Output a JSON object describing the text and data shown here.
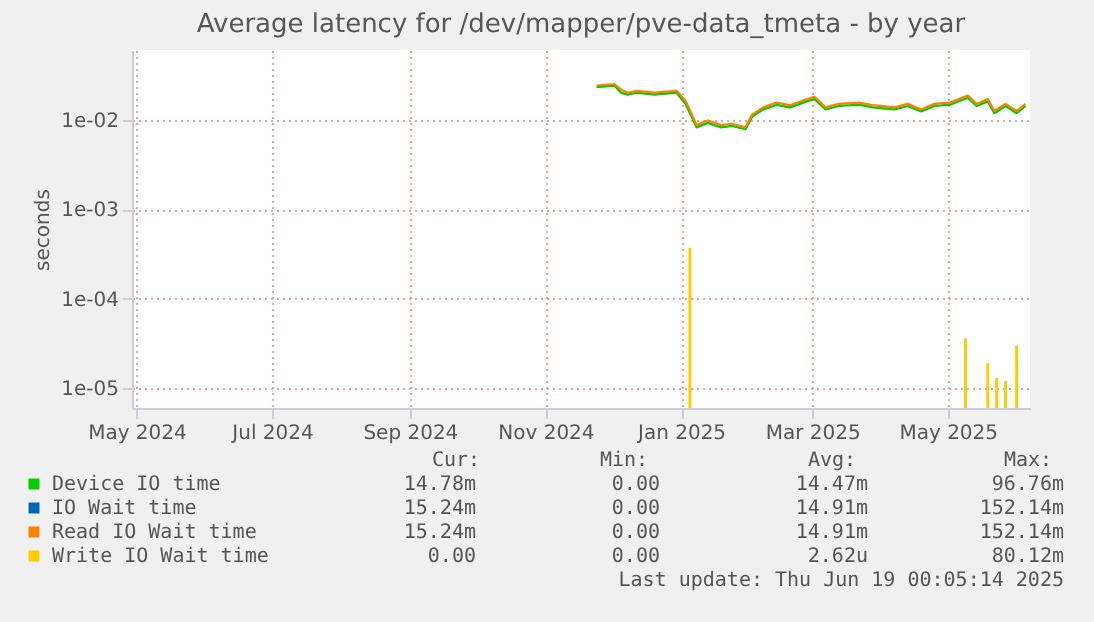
{
  "chart_data": {
    "type": "line",
    "title": "Average latency for /dev/mapper/pve-data_tmeta - by year",
    "ylabel": "seconds",
    "log": true,
    "grid": true,
    "legend": "bottom",
    "xlim": [
      "2024-04-29",
      "2025-06-07"
    ],
    "xticks": [
      {
        "value": "2024-05-01",
        "label": "May 2024"
      },
      {
        "value": "2024-07-01",
        "label": "Jul 2024"
      },
      {
        "value": "2024-09-01",
        "label": "Sep 2024"
      },
      {
        "value": "2024-11-01",
        "label": "Nov 2024"
      },
      {
        "value": "2025-01-01",
        "label": "Jan 2025"
      },
      {
        "value": "2025-03-01",
        "label": "Mar 2025"
      },
      {
        "value": "2025-05-01",
        "label": "May 2025"
      }
    ],
    "ylim": [
      6e-06,
      0.06
    ],
    "yticks": [
      {
        "value": 1e-05,
        "label": "1e-05"
      },
      {
        "value": 0.0001,
        "label": "1e-04"
      },
      {
        "value": 0.001,
        "label": "1e-03"
      },
      {
        "value": 0.01,
        "label": "1e-02"
      }
    ],
    "x": [
      "2024-11-24",
      "2024-12-02",
      "2024-12-05",
      "2024-12-08",
      "2024-12-12",
      "2024-12-20",
      "2024-12-30",
      "2025-01-03",
      "2025-01-08",
      "2025-01-13",
      "2025-01-19",
      "2025-01-24",
      "2025-01-30",
      "2025-02-02",
      "2025-02-07",
      "2025-02-13",
      "2025-02-19",
      "2025-02-25",
      "2025-03-02",
      "2025-03-07",
      "2025-03-13",
      "2025-03-22",
      "2025-03-28",
      "2025-04-07",
      "2025-04-13",
      "2025-04-19",
      "2025-04-25",
      "2025-05-02",
      "2025-05-10",
      "2025-05-14",
      "2025-05-19",
      "2025-05-22",
      "2025-05-27",
      "2025-06-01",
      "2025-06-05"
    ],
    "series": [
      {
        "name": "Device IO time",
        "color": "#00cc00",
        "values": [
          0.023,
          0.024,
          0.02,
          0.019,
          0.02,
          0.019,
          0.02,
          0.015,
          0.0082,
          0.0092,
          0.0082,
          0.0085,
          0.0078,
          0.0108,
          0.013,
          0.0146,
          0.0137,
          0.0155,
          0.017,
          0.013,
          0.0142,
          0.0147,
          0.0137,
          0.013,
          0.0142,
          0.0123,
          0.0142,
          0.0147,
          0.0176,
          0.0142,
          0.016,
          0.0118,
          0.0142,
          0.0118,
          0.0142
        ]
      },
      {
        "name": "IO Wait time",
        "color": "#0066b3",
        "values": [
          null,
          null,
          null,
          null,
          null,
          null,
          null,
          null,
          null,
          null,
          null,
          null,
          null,
          null,
          null,
          null,
          null,
          null,
          null,
          null,
          null,
          null,
          null,
          null,
          null,
          null,
          null,
          null,
          null,
          null,
          null,
          null,
          null,
          null,
          null
        ]
      },
      {
        "name": "Read IO Wait time",
        "color": "#ff8000",
        "values": [
          0.024,
          0.025,
          0.0216,
          0.02,
          0.021,
          0.02,
          0.021,
          0.0164,
          0.0087,
          0.0098,
          0.0087,
          0.009,
          0.0082,
          0.0114,
          0.0137,
          0.0155,
          0.0145,
          0.0164,
          0.018,
          0.0137,
          0.015,
          0.0155,
          0.0145,
          0.0137,
          0.015,
          0.013,
          0.015,
          0.0155,
          0.0186,
          0.015,
          0.017,
          0.0125,
          0.015,
          0.0125,
          0.015
        ]
      },
      {
        "name": "Write IO Wait time",
        "color": "#ffcc00",
        "type": "bar",
        "x": [
          "2025-01-05",
          "2025-05-09",
          "2025-05-19",
          "2025-05-23",
          "2025-05-27",
          "2025-06-01"
        ],
        "values": [
          0.00037,
          3.6e-05,
          1.9e-05,
          1.3e-05,
          1.2e-05,
          3e-05
        ]
      }
    ],
    "annotations": [
      "Cur:",
      "Min:",
      "Avg:",
      "Max:",
      "14.78m",
      "0.00",
      "14.47m",
      "96.76m",
      "15.24m",
      "0.00",
      "14.91m",
      "152.14m",
      "15.24m",
      "0.00",
      "14.91m",
      "152.14m",
      "0.00",
      "0.00",
      "2.62u",
      "80.12m",
      "Last update: Thu Jun 19 00:05:14 2025"
    ]
  }
}
